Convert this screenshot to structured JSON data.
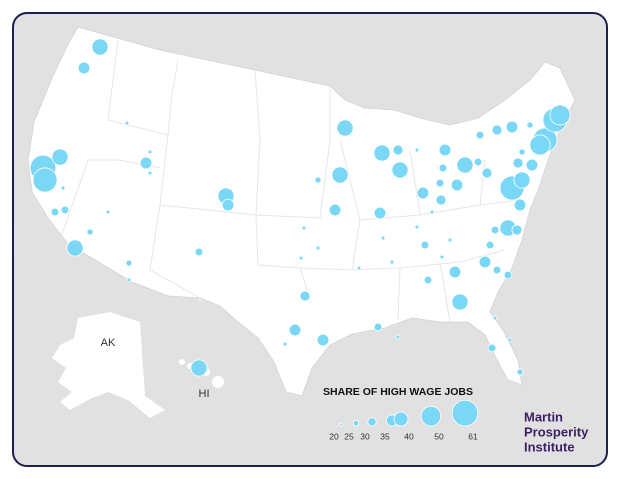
{
  "labels": {
    "ak": "AK",
    "hi": "HI"
  },
  "legend": {
    "title": "SHARE OF HIGH WAGE JOBS",
    "values": [
      20,
      25,
      30,
      35,
      40,
      50,
      61
    ]
  },
  "logo": [
    "Martin",
    "Prosperity",
    "Institute"
  ],
  "bubble_color": "#7ad8f6",
  "bubbles": [
    44,
    36,
    22,
    61,
    58,
    44,
    22,
    29,
    29,
    44,
    26,
    22,
    36,
    22,
    22,
    44,
    36,
    29,
    26,
    22,
    19,
    44,
    44,
    26,
    36,
    22,
    22,
    22,
    33,
    36,
    22,
    36,
    22,
    36,
    44,
    33,
    44,
    36,
    33,
    29,
    22,
    36,
    29,
    36,
    44,
    29,
    33,
    29,
    33,
    36,
    58,
    44,
    36,
    58,
    58,
    51,
    51,
    36,
    33,
    26,
    26,
    44,
    33,
    29,
    22,
    29,
    22,
    22,
    29,
    36,
    29,
    29,
    36,
    44,
    29,
    29,
    22,
    22,
    29,
    26,
    22,
    22,
    22,
    22,
    44
  ]
}
